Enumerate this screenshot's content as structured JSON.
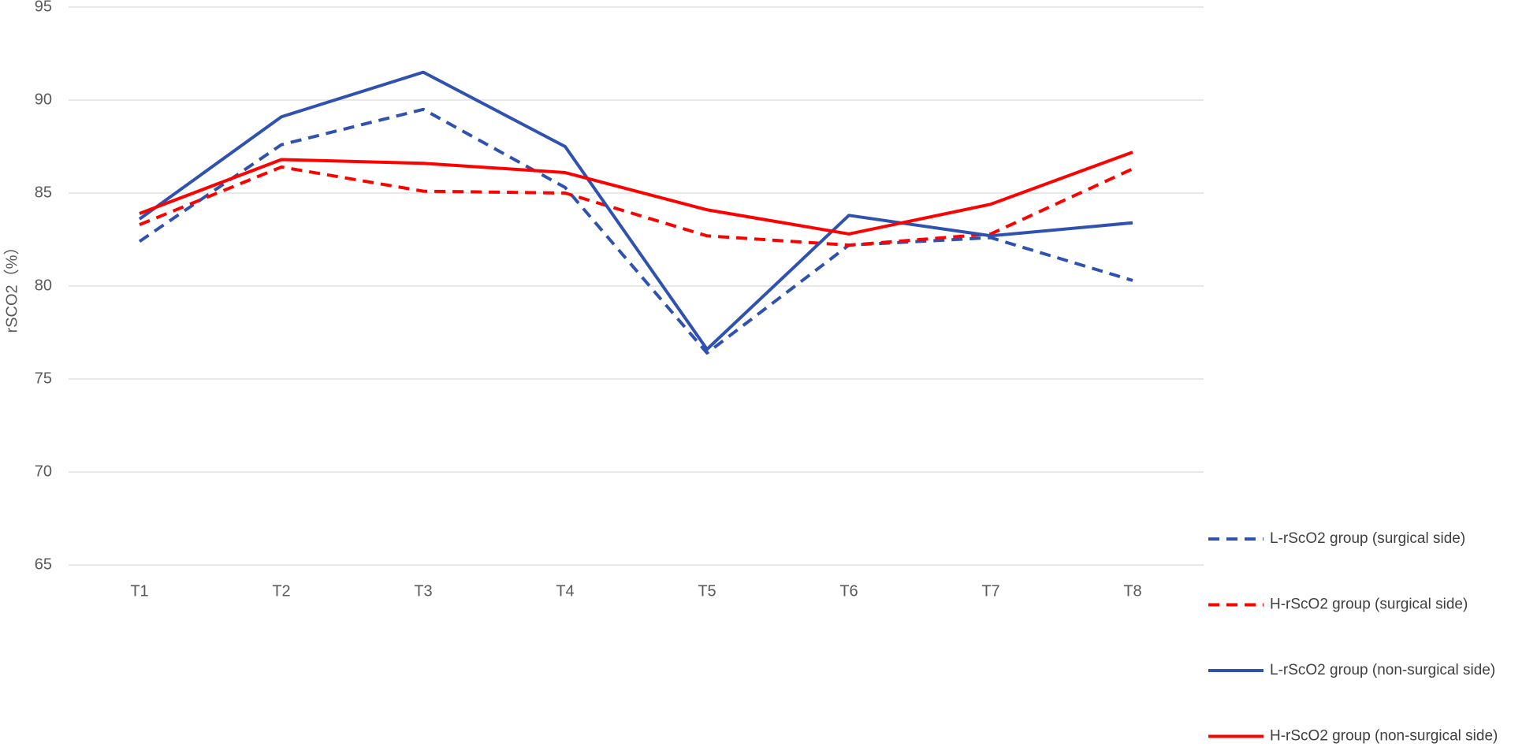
{
  "chart_data": {
    "type": "line",
    "ylabel": "rSCO2（%）",
    "categories": [
      "T1",
      "T2",
      "T3",
      "T4",
      "T5",
      "T6",
      "T7",
      "T8"
    ],
    "series": [
      {
        "name": "L-rScO2 group (surgical side)",
        "color": "#2f52b0",
        "dashed": true,
        "values": [
          82.4,
          87.6,
          89.5,
          85.3,
          76.4,
          82.2,
          82.6,
          80.3
        ]
      },
      {
        "name": "H-rScO2 group (surgical side)",
        "color": "#ff0000",
        "dashed": true,
        "values": [
          83.3,
          86.4,
          85.1,
          85.0,
          82.7,
          82.2,
          82.8,
          86.3
        ]
      },
      {
        "name": "L-rScO2 group (non-surgical side)",
        "color": "#2f52b0",
        "dashed": false,
        "values": [
          83.6,
          89.1,
          91.5,
          87.5,
          76.6,
          83.8,
          82.7,
          83.4
        ]
      },
      {
        "name": "H-rScO2 group (non-surgical side)",
        "color": "#ff0000",
        "dashed": false,
        "values": [
          83.9,
          86.8,
          86.6,
          86.1,
          84.1,
          82.8,
          84.4,
          87.2
        ]
      }
    ],
    "ylim": [
      65,
      95
    ],
    "yticks": [
      65,
      70,
      75,
      80,
      85,
      90,
      95
    ],
    "grid": true,
    "legend": "right"
  }
}
